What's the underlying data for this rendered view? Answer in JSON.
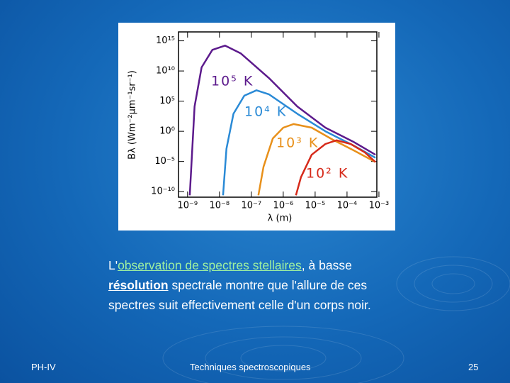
{
  "chart_data": {
    "type": "line",
    "xlabel": "λ (m)",
    "ylabel": "Bλ (Wm⁻²μm⁻¹sr⁻¹)",
    "xscale": "log",
    "yscale": "log",
    "grid": false,
    "xlim": [
      5.2e-10,
      0.00086
    ],
    "ylim": [
      1.2e-11,
      3e+16
    ],
    "xticks": [
      {
        "value": 1e-09,
        "label": "10⁻⁹"
      },
      {
        "value": 1e-08,
        "label": "10⁻⁸"
      },
      {
        "value": 1e-07,
        "label": "10⁻⁷"
      },
      {
        "value": 1e-06,
        "label": "10⁻⁶"
      },
      {
        "value": 1e-05,
        "label": "10⁻⁵"
      },
      {
        "value": 0.0001,
        "label": "10⁻⁴"
      },
      {
        "value": 0.001,
        "label": "10⁻³"
      }
    ],
    "yticks": [
      {
        "value": 1e-10,
        "label": "10⁻¹⁰"
      },
      {
        "value": 1e-05,
        "label": "10⁻⁵"
      },
      {
        "value": 1,
        "label": "10⁰"
      },
      {
        "value": 100000.0,
        "label": "10⁵"
      },
      {
        "value": 10000000000.0,
        "label": "10¹⁰"
      },
      {
        "value": 1000000000000000.0,
        "label": "10¹⁵"
      }
    ],
    "series": [
      {
        "name": "10⁵ K",
        "color": "#5c1a8c",
        "x": [
          1.17e-09,
          1.66e-09,
          2.75e-09,
          6e-09,
          1.5e-08,
          4.7e-08,
          3.6e-07,
          2.75e-06,
          2.1e-05,
          0.000166,
          0.00078
        ],
        "values": [
          2.5e-11,
          13000.0,
          40000000000.0,
          32000000000000.0,
          160000000000000.0,
          8000000000000.0,
          630000000.0,
          13000.0,
          4,
          0.016,
          0.00013
        ]
      },
      {
        "name": "10⁴ K",
        "color": "#2a8ad6",
        "x": [
          1.3e-08,
          1.66e-08,
          2.75e-08,
          6e-08,
          1.45e-07,
          3.6e-07,
          2.75e-06,
          2.1e-05,
          0.000166,
          0.00078
        ],
        "values": [
          2.5e-11,
          0.0013,
          800,
          800000.0,
          6300000.0,
          1300000.0,
          800,
          1,
          0.004,
          4e-05
        ]
      },
      {
        "name": "10³ K",
        "color": "#e8901a",
        "x": [
          1.66e-07,
          2.4e-07,
          4.7e-07,
          1e-06,
          2.1e-06,
          7.8e-06,
          3.6e-05,
          0.000166,
          0.00078
        ],
        "values": [
          2.5e-11,
          1.3e-06,
          0.063,
          4,
          16,
          4,
          0.04,
          0.00063,
          8e-06
        ]
      },
      {
        "name": "10² K",
        "color": "#d62a1a",
        "x": [
          2.5e-06,
          3.6e-06,
          7.8e-06,
          2.1e-05,
          4.7e-05,
          0.00013,
          0.00036,
          0.00078
        ],
        "values": [
          2.5e-11,
          2.5e-08,
          0.00013,
          0.008,
          0.032,
          0.008,
          0.00032,
          8e-06
        ]
      }
    ]
  },
  "slide": {
    "text": [
      "L'",
      "observation de spectres stellaires",
      ", à basse",
      "résolution",
      " spectrale montre que l'allure de ces",
      "spectres suit effectivement celle d'un corps noir."
    ],
    "footer": {
      "left": "PH-IV",
      "center": "Techniques spectroscopiques",
      "right": "25"
    }
  }
}
